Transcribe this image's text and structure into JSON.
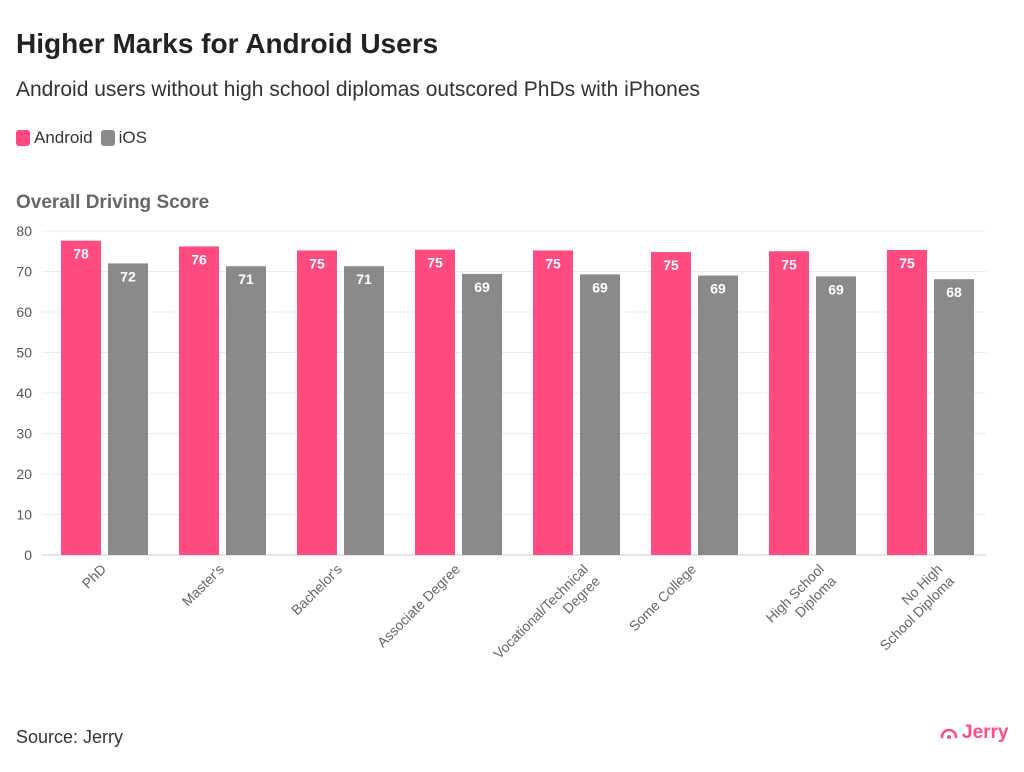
{
  "chart_data": {
    "type": "bar",
    "title": "Higher Marks for Android Users",
    "subtitle": "Android users without high school diplomas outscored PhDs with iPhones",
    "ylabel": "Overall Driving Score",
    "xlabel": "",
    "ylim": [
      0,
      80
    ],
    "yticks": [
      0,
      10,
      20,
      30,
      40,
      50,
      60,
      70,
      80
    ],
    "grid": true,
    "legend_position": "top-left",
    "categories": [
      "PhD",
      "Master's",
      "Bachelor's",
      "Associate Degree",
      "Vocational/Technical Degree",
      "Some College",
      "High School Diploma",
      "No High School Diploma"
    ],
    "series": [
      {
        "name": "Android",
        "color": "#ff4b80",
        "values": [
          77.6,
          76.2,
          75.2,
          75.4,
          75.2,
          74.8,
          75.0,
          75.3
        ],
        "labels": [
          "78",
          "76",
          "75",
          "75",
          "75",
          "75",
          "75",
          "75"
        ]
      },
      {
        "name": "iOS",
        "color": "#8a8a8a",
        "values": [
          72.0,
          71.3,
          71.3,
          69.4,
          69.3,
          69.0,
          68.8,
          68.1
        ],
        "labels": [
          "72",
          "71",
          "71",
          "69",
          "69",
          "69",
          "69",
          "68"
        ]
      }
    ]
  },
  "footer": {
    "source": "Source: Jerry",
    "logo": "Jerry",
    "logo_color": "#ff4b80"
  }
}
